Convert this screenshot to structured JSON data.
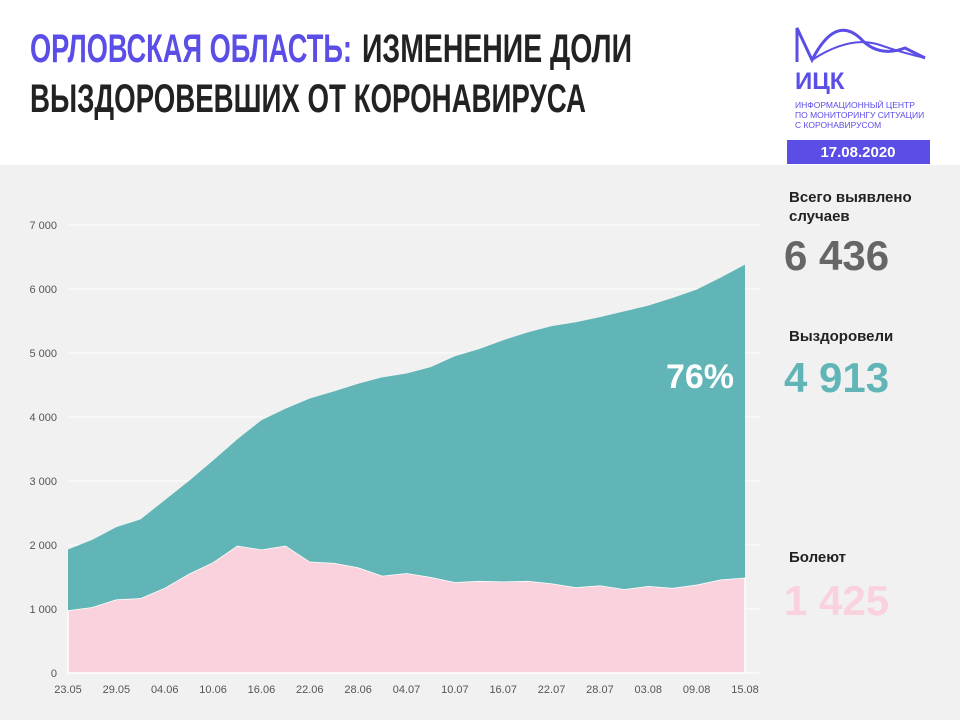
{
  "header": {
    "title_highlight": "ОРЛОВСКАЯ ОБЛАСТЬ:",
    "title_rest": "ИЗМЕНЕНИЕ ДОЛИ",
    "title_line2": "ВЫЗДОРОВЕВШИХ ОТ КОРОНАВИРУСА"
  },
  "logo": {
    "name": "ИЦК",
    "lines": [
      "ИНФОРМАЦИОННЫЙ ЦЕНТР",
      "ПО МОНИТОРИНГУ СИТУАЦИИ",
      "С КОРОНАВИРУСОМ"
    ],
    "date": "17.08.2020"
  },
  "stats": [
    {
      "label": [
        "Всего выявлено",
        "случаев"
      ],
      "value": "6 436"
    },
    {
      "label": [
        "Выздоровели"
      ],
      "value": "4 913"
    },
    {
      "label": [
        "Болеют"
      ],
      "value": "1 425"
    }
  ],
  "chart_data": {
    "type": "stacked_area",
    "categories": [
      "23.05",
      null,
      "29.05",
      null,
      "04.06",
      null,
      "10.06",
      null,
      "16.06",
      null,
      "22.06",
      null,
      "28.06",
      null,
      "04.07",
      null,
      "10.07",
      null,
      "16.07",
      null,
      "22.07",
      null,
      "28.07",
      null,
      "03.08",
      null,
      "09.08",
      null,
      "15.08"
    ],
    "series": [
      {
        "color": "#f9d2dd",
        "values": [
          980,
          1030,
          1150,
          1170,
          1330,
          1550,
          1730,
          1990,
          1930,
          1990,
          1740,
          1720,
          1650,
          1520,
          1560,
          1500,
          1420,
          1440,
          1430,
          1440,
          1400,
          1340,
          1370,
          1310,
          1360,
          1330,
          1380,
          1460,
          1490
        ]
      },
      {
        "color": "#62b5b7",
        "values": [
          950,
          1050,
          1130,
          1230,
          1370,
          1450,
          1590,
          1660,
          2020,
          2140,
          2550,
          2680,
          2870,
          3100,
          3120,
          3280,
          3530,
          3620,
          3770,
          3880,
          4020,
          4140,
          4190,
          4340,
          4380,
          4530,
          4610,
          4720,
          4890
        ]
      }
    ],
    "ylim": [
      0,
      7000
    ],
    "yticks": [
      0,
      {
        "value": 1000,
        "label": "1 000"
      },
      {
        "value": 2000,
        "label": "2 000"
      },
      {
        "value": 3000,
        "label": "3 000"
      },
      {
        "value": 4000,
        "label": "4 000"
      },
      {
        "value": 5000,
        "label": "5 000"
      },
      {
        "value": 6000,
        "label": "6 000"
      },
      {
        "value": 7000,
        "label": "7 000"
      }
    ],
    "grid": true,
    "annotation": "76%"
  }
}
